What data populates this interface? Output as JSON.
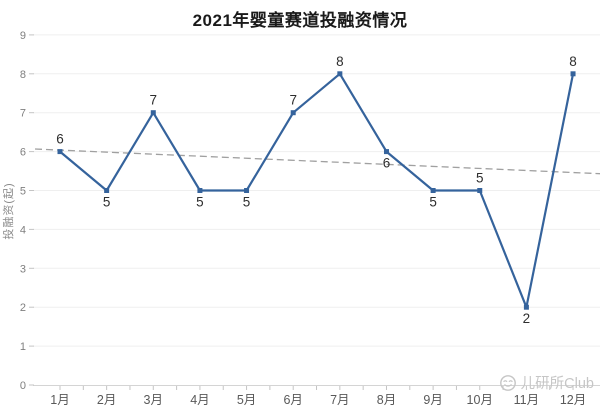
{
  "header": {
    "title": "2021年婴童赛道投融资情况"
  },
  "chart_data": {
    "type": "line",
    "title": "2021年婴童赛道投融资情况",
    "categories": [
      "1月",
      "2月",
      "3月",
      "4月",
      "5月",
      "6月",
      "7月",
      "8月",
      "9月",
      "10月",
      "11月",
      "12月"
    ],
    "series": [
      {
        "name": "投融资",
        "values": [
          6,
          5,
          7,
          5,
          5,
          7,
          8,
          6,
          5,
          5,
          2,
          8
        ]
      }
    ],
    "data_label_positions": [
      "above",
      "below",
      "above",
      "below",
      "below",
      "above",
      "above",
      "below",
      "below",
      "above",
      "below",
      "above"
    ],
    "xlabel": "",
    "ylabel": "投融资(起)",
    "ylim": [
      0,
      9
    ],
    "yticks": [
      0,
      1,
      2,
      3,
      4,
      5,
      6,
      7,
      8,
      9
    ],
    "grid": true,
    "legend": false,
    "trendline": {
      "style": "dashed",
      "intercept": 6.091,
      "slope": -0.0524
    },
    "colors": {
      "line": "#35639c",
      "marker": "#35639c",
      "trend": "#a0a0a0",
      "grid": "#efefef",
      "axis": "#d4d4d4",
      "tick": "#c4c4c4",
      "tick_label": "#7f7f7f",
      "x_label": "#595959",
      "data_label": "#2e2e2e",
      "title": "#1a1a1a"
    }
  },
  "watermark": {
    "text": "儿研所Club",
    "icon": "winking-smiley-icon",
    "color": "#c6c6c6"
  }
}
